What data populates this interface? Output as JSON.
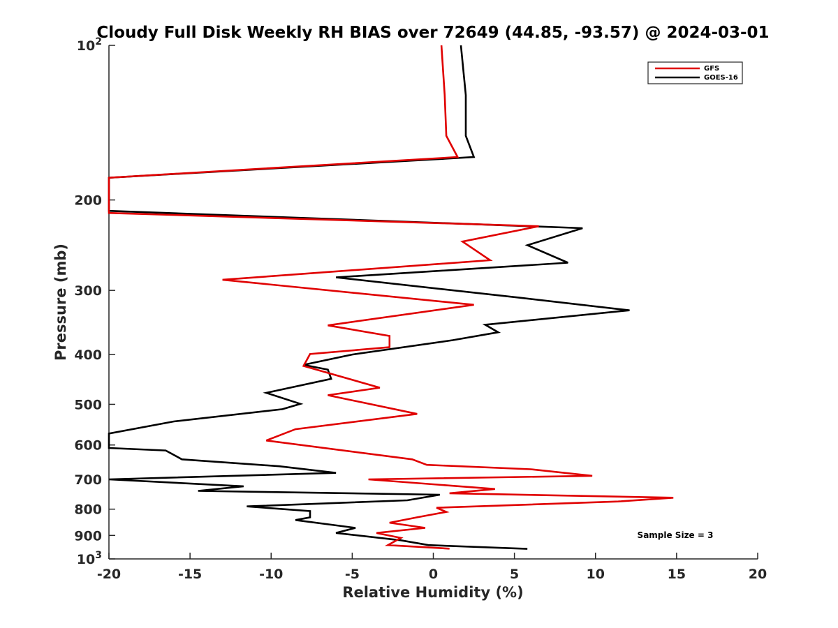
{
  "chart_data": {
    "type": "line",
    "title": "Cloudy Full Disk Weekly RH BIAS over 72649 (44.85, -93.57) @ 2024-03-01",
    "xlabel": "Relative Humidity (%)",
    "ylabel": "Pressure (mb)",
    "xlim": [
      -20,
      20
    ],
    "ylim": [
      100,
      1000
    ],
    "y_scale": "log",
    "y_reversed": true,
    "x_ticks": [
      "-20",
      "-15",
      "-10",
      "-5",
      "0",
      "5",
      "10",
      "15",
      "20"
    ],
    "y_ticks": [
      {
        "value": 100,
        "label": "10",
        "sup": "2"
      },
      {
        "value": 200,
        "label": "200"
      },
      {
        "value": 300,
        "label": "300"
      },
      {
        "value": 400,
        "label": "400"
      },
      {
        "value": 500,
        "label": "500"
      },
      {
        "value": 600,
        "label": "600"
      },
      {
        "value": 700,
        "label": "700"
      },
      {
        "value": 800,
        "label": "800"
      },
      {
        "value": 900,
        "label": "900"
      },
      {
        "value": 1000,
        "label": "10",
        "sup": "3"
      }
    ],
    "legend_position": "top-right",
    "annotation": "Sample Size = 3",
    "series": [
      {
        "name": "GFS",
        "color": "#e00000",
        "points": [
          [
            0.5,
            100
          ],
          [
            0.7,
            125
          ],
          [
            0.8,
            150
          ],
          [
            1.5,
            165
          ],
          [
            -20,
            181
          ],
          [
            -20,
            212
          ],
          [
            6.5,
            225
          ],
          [
            1.8,
            241
          ],
          [
            3.5,
            262
          ],
          [
            -13,
            286
          ],
          [
            2.5,
            320
          ],
          [
            -6.5,
            351
          ],
          [
            -2.7,
            368
          ],
          [
            -2.7,
            387
          ],
          [
            -7.6,
            399
          ],
          [
            -8,
            421
          ],
          [
            -3.3,
            464
          ],
          [
            -6.5,
            480
          ],
          [
            -1,
            522
          ],
          [
            -8.5,
            559
          ],
          [
            -10.3,
            588
          ],
          [
            -1.3,
            640
          ],
          [
            -0.4,
            656
          ],
          [
            6,
            669
          ],
          [
            9.8,
            689
          ],
          [
            -4,
            700
          ],
          [
            3.8,
            731
          ],
          [
            1,
            745
          ],
          [
            14.8,
            760
          ],
          [
            11.4,
            773
          ],
          [
            0.2,
            795
          ],
          [
            0.8,
            810
          ],
          [
            -1,
            830
          ],
          [
            -2.7,
            850
          ],
          [
            -0.5,
            870
          ],
          [
            -3.5,
            890
          ],
          [
            -2,
            910
          ],
          [
            -2.8,
            940
          ],
          [
            1,
            955
          ]
        ]
      },
      {
        "name": "GOES-16",
        "color": "#000000",
        "points": [
          [
            1.7,
            100
          ],
          [
            2,
            125
          ],
          [
            2,
            150
          ],
          [
            2.5,
            165
          ],
          [
            -20,
            181
          ],
          [
            -20,
            210
          ],
          [
            9.2,
            227
          ],
          [
            5.8,
            245
          ],
          [
            8.3,
            265
          ],
          [
            -6,
            283
          ],
          [
            5.3,
            310
          ],
          [
            12.1,
            328
          ],
          [
            3.2,
            350
          ],
          [
            4,
            362
          ],
          [
            1.2,
            375
          ],
          [
            -5,
            400
          ],
          [
            -8,
            419
          ],
          [
            -6.5,
            428
          ],
          [
            -6.3,
            446
          ],
          [
            -10.3,
            475
          ],
          [
            -8.2,
            499
          ],
          [
            -9.3,
            511
          ],
          [
            -16,
            540
          ],
          [
            -20,
            570
          ],
          [
            -20,
            608
          ],
          [
            -16.5,
            615
          ],
          [
            -15.5,
            640
          ],
          [
            -9.5,
            660
          ],
          [
            -6,
            680
          ],
          [
            -20,
            700
          ],
          [
            -11.7,
            722
          ],
          [
            -14.5,
            737
          ],
          [
            0.4,
            750
          ],
          [
            -1.6,
            769
          ],
          [
            -11.5,
            790
          ],
          [
            -7.6,
            807
          ],
          [
            -7.6,
            830
          ],
          [
            -8.5,
            840
          ],
          [
            -4.8,
            870
          ],
          [
            -6,
            890
          ],
          [
            -2,
            920
          ],
          [
            -0.3,
            940
          ],
          [
            5.8,
            956
          ]
        ]
      }
    ]
  }
}
